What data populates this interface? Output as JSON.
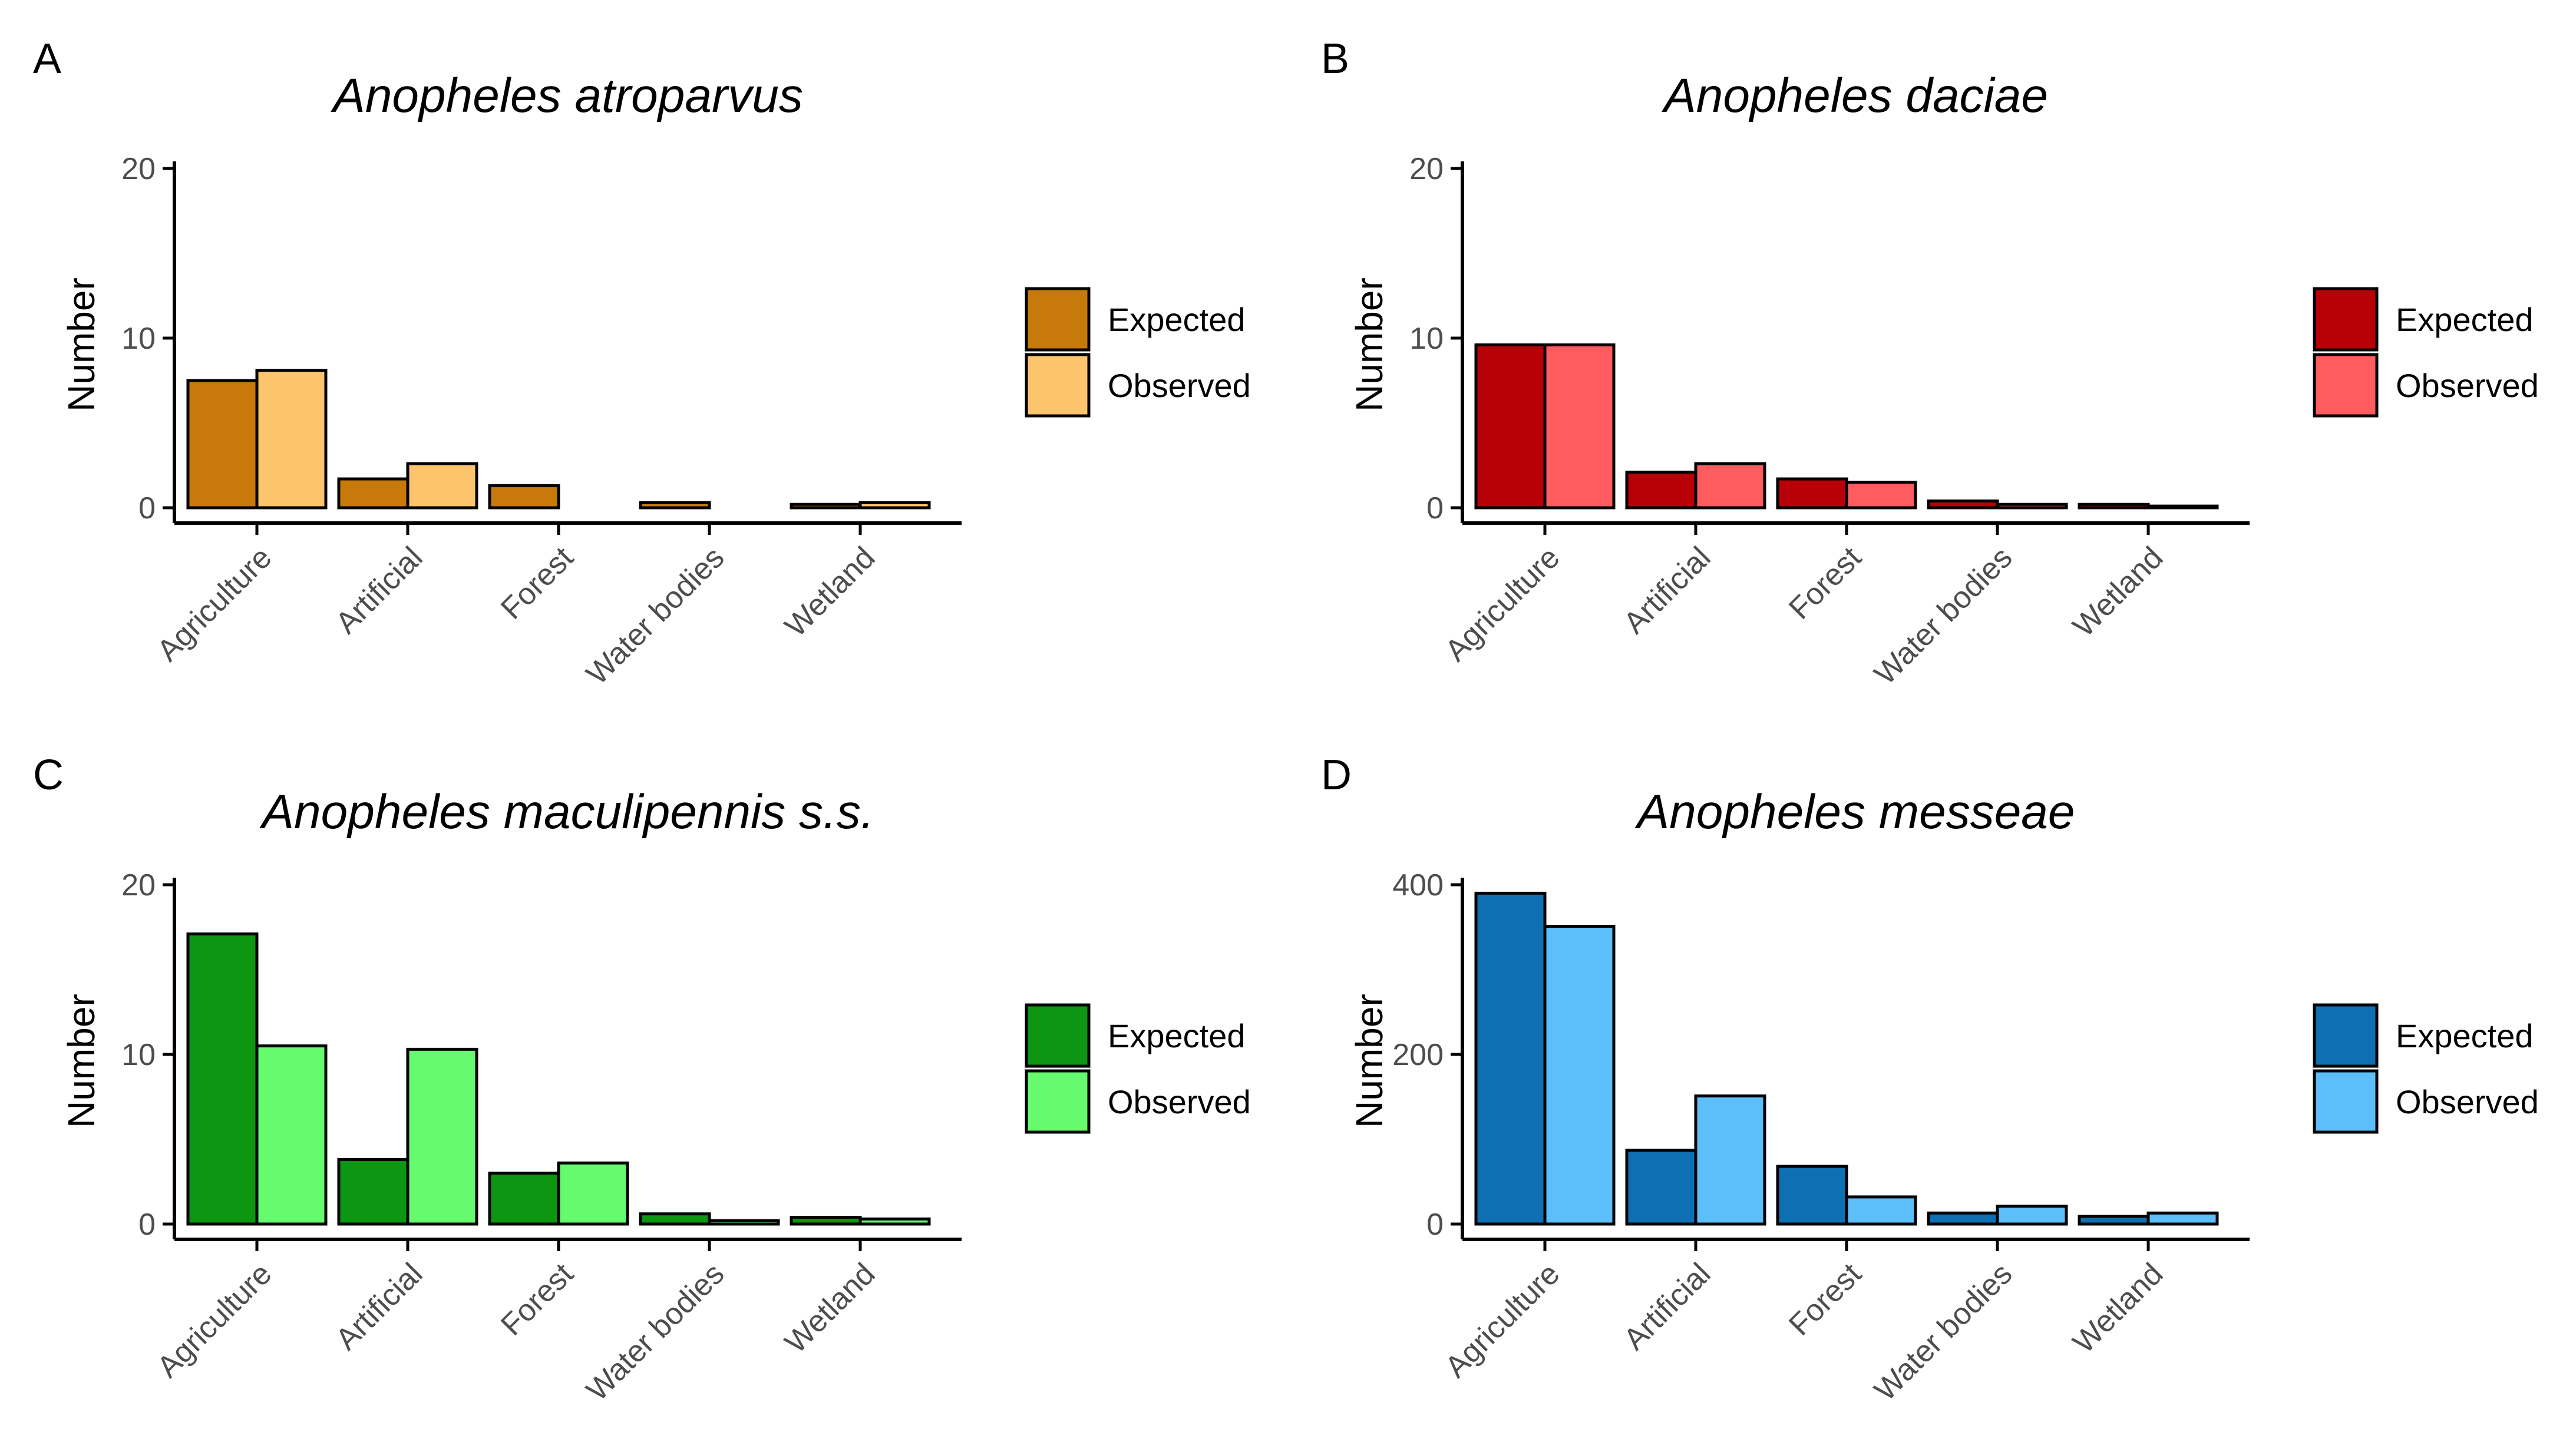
{
  "chart_data": [
    {
      "panel": "A",
      "type": "bar",
      "title": "Anopheles atroparvus",
      "xlabel": "",
      "ylabel": "Number",
      "ylim": [
        0,
        20
      ],
      "yticks": [
        0,
        10,
        20
      ],
      "categories": [
        "Agriculture",
        "Artificial",
        "Forest",
        "Water bodies",
        "Wetland"
      ],
      "series": [
        {
          "name": "Expected",
          "color": "#C77A0A",
          "values": [
            7.5,
            1.7,
            1.3,
            0.3,
            0.2
          ]
        },
        {
          "name": "Observed",
          "color": "#FDC46E",
          "values": [
            8.1,
            2.6,
            0.0,
            0.0,
            0.3
          ]
        }
      ]
    },
    {
      "panel": "B",
      "type": "bar",
      "title": "Anopheles daciae",
      "xlabel": "",
      "ylabel": "Number",
      "ylim": [
        0,
        20
      ],
      "yticks": [
        0,
        10,
        20
      ],
      "categories": [
        "Agriculture",
        "Artificial",
        "Forest",
        "Water bodies",
        "Wetland"
      ],
      "series": [
        {
          "name": "Expected",
          "color": "#B80008",
          "values": [
            9.6,
            2.1,
            1.7,
            0.4,
            0.2
          ]
        },
        {
          "name": "Observed",
          "color": "#FF5C60",
          "values": [
            9.6,
            2.6,
            1.5,
            0.2,
            0.1
          ]
        }
      ]
    },
    {
      "panel": "C",
      "type": "bar",
      "title": "Anopheles maculipennis s.s.",
      "xlabel": "",
      "ylabel": "Number",
      "ylim": [
        0,
        20
      ],
      "yticks": [
        0,
        10,
        20
      ],
      "categories": [
        "Agriculture",
        "Artificial",
        "Forest",
        "Water bodies",
        "Wetland"
      ],
      "series": [
        {
          "name": "Expected",
          "color": "#0C9612",
          "values": [
            17.1,
            3.8,
            3.0,
            0.6,
            0.4
          ]
        },
        {
          "name": "Observed",
          "color": "#66FA6E",
          "values": [
            10.5,
            10.3,
            3.6,
            0.2,
            0.3
          ]
        }
      ]
    },
    {
      "panel": "D",
      "type": "bar",
      "title": "Anopheles messeae",
      "xlabel": "",
      "ylabel": "Number",
      "ylim": [
        0,
        400
      ],
      "yticks": [
        0,
        200,
        400
      ],
      "categories": [
        "Agriculture",
        "Artificial",
        "Forest",
        "Water bodies",
        "Wetland"
      ],
      "series": [
        {
          "name": "Expected",
          "color": "#0E70B3",
          "values": [
            390,
            87,
            68,
            13,
            9
          ]
        },
        {
          "name": "Observed",
          "color": "#5DBFFA",
          "values": [
            351,
            151,
            32,
            21,
            13
          ]
        }
      ]
    }
  ]
}
